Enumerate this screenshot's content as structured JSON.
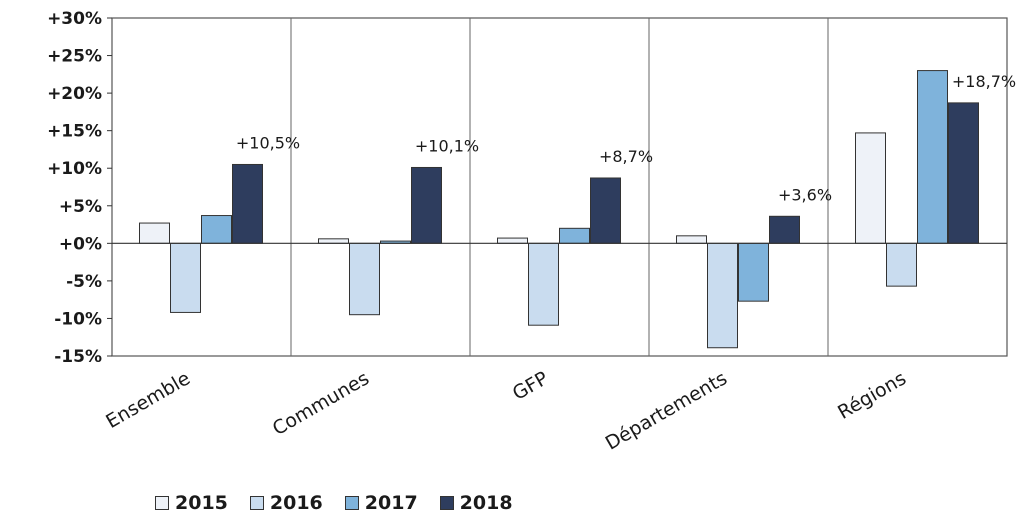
{
  "chart_data": {
    "type": "bar",
    "categories": [
      "Ensemble",
      "Communes",
      "GFP",
      "Départements",
      "Régions"
    ],
    "series": [
      {
        "name": "2015",
        "values": [
          2.7,
          0.6,
          0.7,
          1.0,
          14.7
        ],
        "color": "#eef2f8"
      },
      {
        "name": "2016",
        "values": [
          -9.2,
          -9.5,
          -10.9,
          -13.9,
          -5.7
        ],
        "color": "#c9dcef"
      },
      {
        "name": "2017",
        "values": [
          3.7,
          0.3,
          2.0,
          -7.7,
          23.0
        ],
        "color": "#7fb3db"
      },
      {
        "name": "2018",
        "values": [
          10.5,
          10.1,
          8.7,
          3.6,
          18.7
        ],
        "color": "#2e3d5e"
      }
    ],
    "annotations": [
      "+10,5%",
      "+10,1%",
      "+8,7%",
      "+3,6%",
      "+18,7%"
    ],
    "ylim": [
      -15,
      30
    ],
    "yticks": [
      -15,
      -10,
      -5,
      0,
      5,
      10,
      15,
      20,
      25,
      30
    ],
    "ytick_labels": [
      "-15%",
      "-10%",
      "-5%",
      "+0%",
      "+5%",
      "+10%",
      "+15%",
      "+20%",
      "+25%",
      "+30%"
    ],
    "grid": "vertical category separators",
    "legend": "bottom",
    "xlabel": "",
    "ylabel": ""
  }
}
